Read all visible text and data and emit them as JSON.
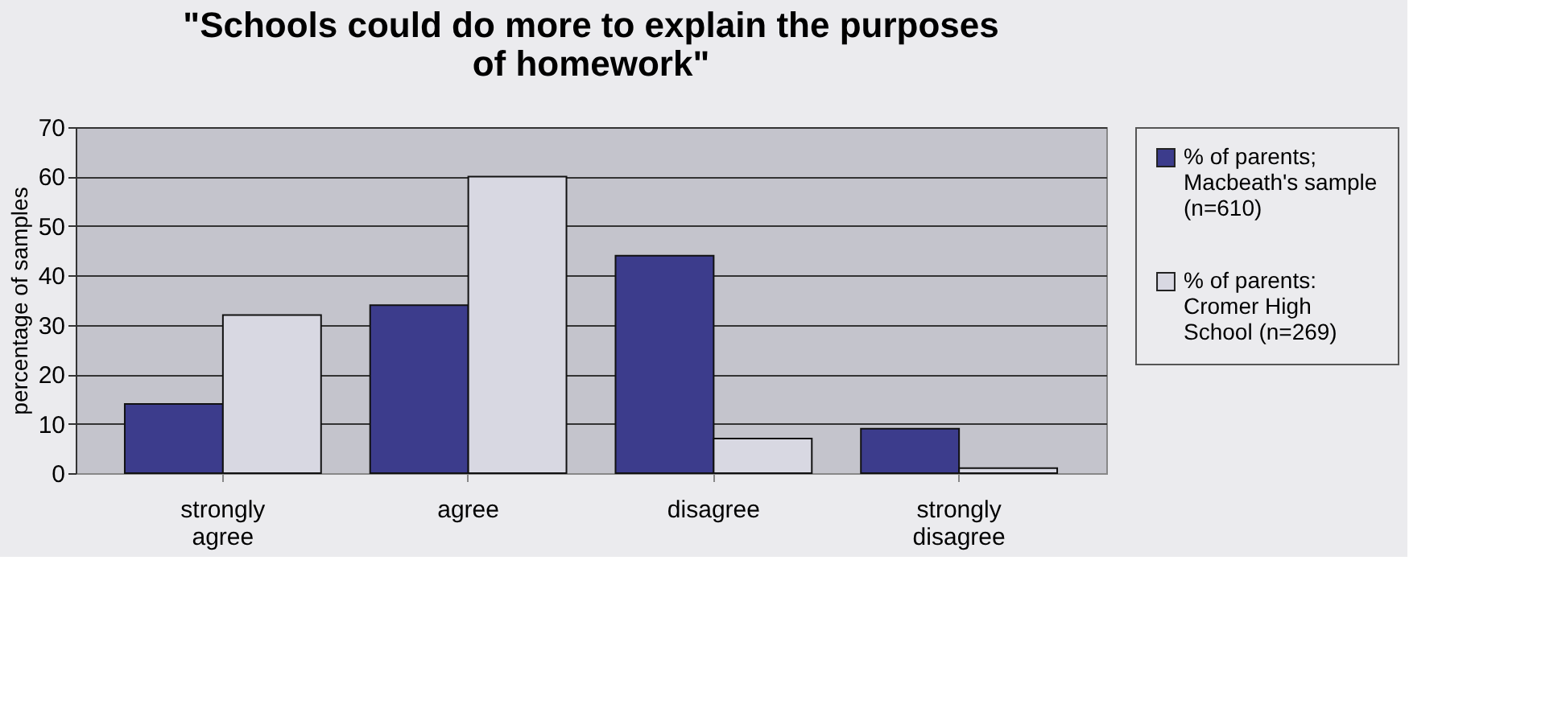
{
  "chart_data": {
    "type": "bar",
    "title": "\"Schools could do more to explain the purposes of homework\"",
    "ylabel": "percentage of samples",
    "categories": [
      "strongly agree",
      "agree",
      "disagree",
      "strongly disagree"
    ],
    "series": [
      {
        "name": "% of parents; Macbeath's sample (n=610)",
        "color": "#3c3c8c",
        "values": [
          14,
          34,
          44,
          9
        ]
      },
      {
        "name": "% of parents: Cromer High School (n=269)",
        "color": "#d8d8e2",
        "values": [
          32,
          60,
          7,
          1
        ]
      }
    ],
    "ylim": [
      0,
      70
    ],
    "yticks": [
      0,
      10,
      20,
      30,
      40,
      50,
      60,
      70
    ],
    "grid": "y",
    "legend": "right"
  }
}
